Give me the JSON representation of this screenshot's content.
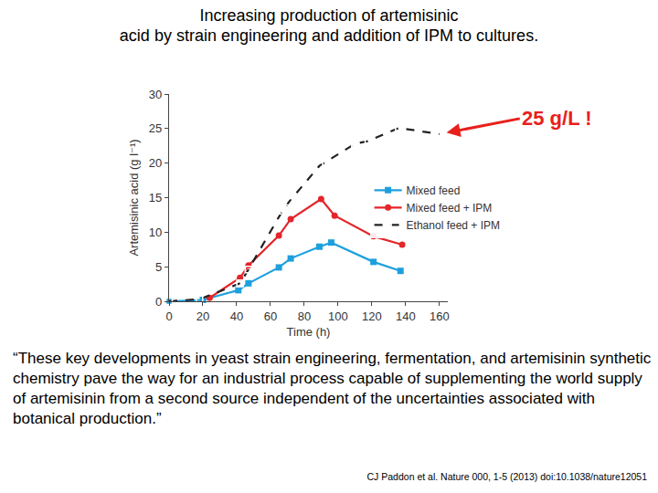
{
  "slide": {
    "title": [
      "Increasing production of artemisinic",
      "acid by strain engineering and addition of IPM to cultures."
    ],
    "quote": "“These key developments in yeast strain engineering, fermentation, and artemisinin synthetic chemistry pave the way for an industrial process capable of supplementing the world supply of artemisinin from a second source independent of the uncertainties associated with botanical production.”",
    "citation": "CJ Paddon et al. Nature 000, 1-5 (2013) doi:10.1038/nature12051"
  },
  "chart_data": {
    "type": "line",
    "x_label": "Time (h)",
    "y_label": "Artemisinic acid (g l⁻¹)",
    "xlim": [
      0,
      165
    ],
    "xticks": [
      0,
      20,
      40,
      60,
      80,
      100,
      120,
      140,
      160
    ],
    "ylim": [
      0,
      30
    ],
    "yticks": [
      0,
      5,
      10,
      15,
      20,
      25,
      30
    ],
    "grid": false,
    "legend": "right",
    "series": [
      {
        "name": "Mixed feed",
        "color": "#1ea0dc",
        "marker": "square",
        "line_style": "solid",
        "x": [
          0,
          20,
          41,
          47,
          65,
          72,
          89,
          96,
          121,
          137
        ],
        "values": [
          0,
          0.2,
          1.6,
          2.6,
          4.9,
          6.2,
          7.9,
          8.5,
          5.7,
          4.4
        ]
      },
      {
        "name": "Mixed feed + IPM",
        "color": "#e3262b",
        "marker": "circle",
        "line_style": "solid",
        "x": [
          24,
          42,
          47,
          65,
          72,
          90,
          98,
          121,
          138
        ],
        "values": [
          0.5,
          3.4,
          5.2,
          9.5,
          11.9,
          14.8,
          12.4,
          9.4,
          8.2
        ]
      },
      {
        "name": "Ethanol feed + IPM",
        "color": "#222222",
        "marker": "square-open",
        "line_style": "dash",
        "x": [
          0,
          18,
          42,
          47,
          65,
          71,
          89,
          110,
          118,
          136,
          160
        ],
        "values": [
          0,
          0.3,
          2.6,
          4.6,
          12.2,
          14.4,
          19.6,
          22.8,
          23.2,
          25.1,
          24.2
        ]
      }
    ],
    "annotations": [
      {
        "text": "25 g/L !",
        "x": 160,
        "y": 24.2,
        "color": "#e8201c"
      }
    ]
  }
}
